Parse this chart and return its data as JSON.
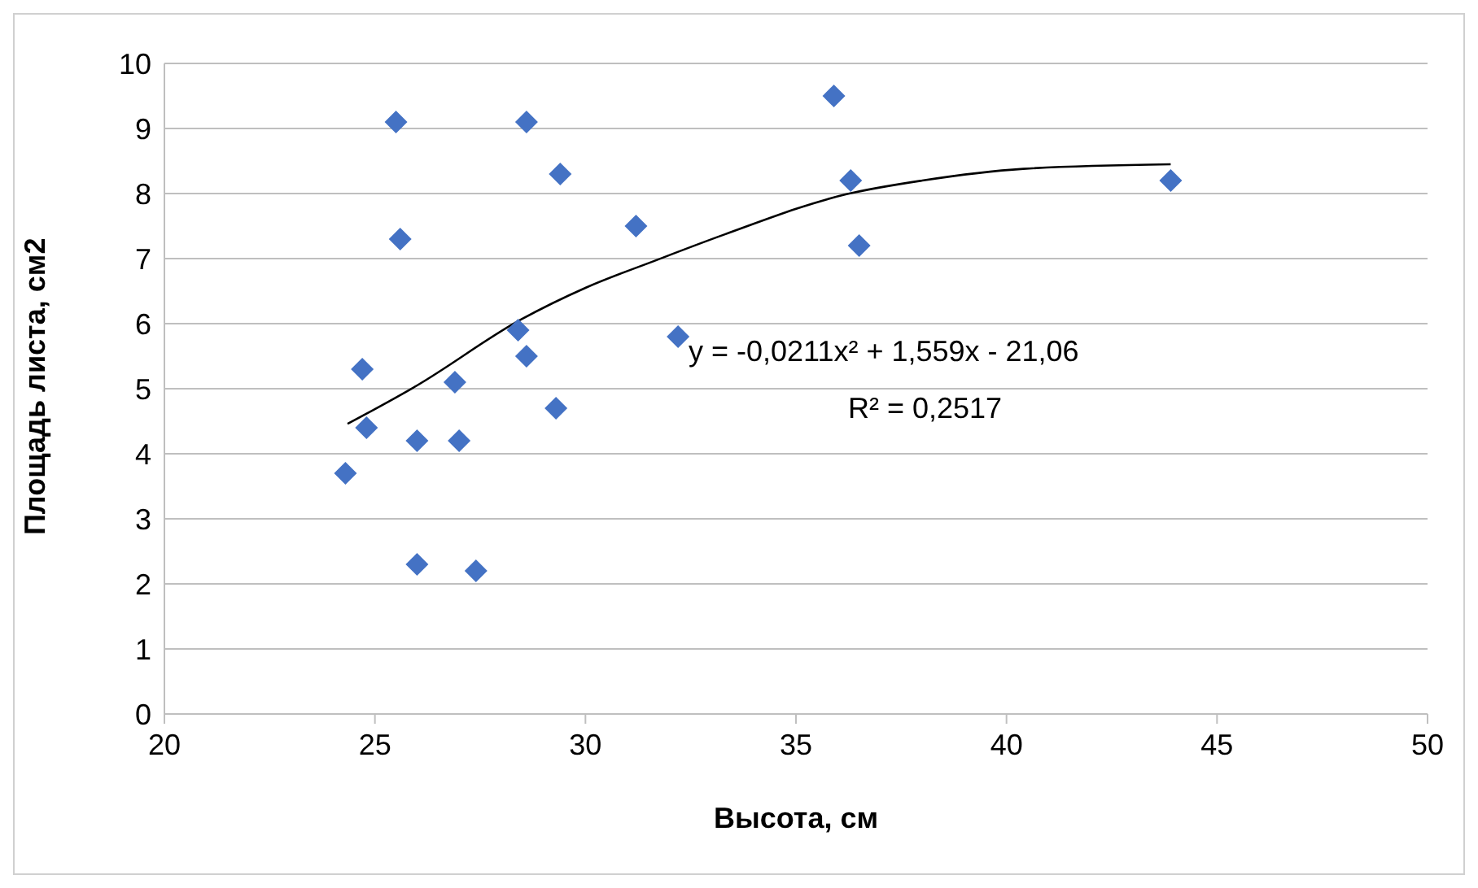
{
  "chart_data": {
    "type": "scatter",
    "xlabel": "Высота, см",
    "ylabel": "Площадь листа, см2",
    "xlim": [
      20,
      50
    ],
    "xticks": [
      20,
      25,
      30,
      35,
      40,
      45,
      50
    ],
    "ylim": [
      0,
      10
    ],
    "yticks": [
      0,
      1,
      2,
      3,
      4,
      5,
      6,
      7,
      8,
      9,
      10
    ],
    "grid": "y",
    "legend": false,
    "marker": "diamond",
    "series": [
      {
        "color": "#4472c4",
        "x": [
          24.3,
          24.7,
          24.8,
          25.5,
          25.6,
          26.0,
          26.0,
          26.9,
          27.0,
          27.4,
          28.4,
          28.6,
          28.6,
          29.3,
          29.4,
          31.2,
          32.2,
          35.9,
          36.3,
          36.5,
          43.9
        ],
        "values": [
          3.7,
          5.3,
          4.4,
          9.1,
          7.3,
          4.2,
          2.3,
          5.1,
          4.2,
          2.2,
          5.9,
          9.1,
          5.5,
          4.7,
          8.3,
          7.5,
          5.8,
          9.5,
          8.2,
          7.2,
          8.2
        ]
      },
      {
        "type": "line",
        "color": "#000000",
        "marker": "none",
        "line_style": "solid",
        "x": [
          24.35,
          26,
          28.46,
          30,
          31.7,
          33.3,
          36.2,
          38,
          40.4,
          43.9
        ],
        "values": [
          4.46,
          5.05,
          6.06,
          6.55,
          6.98,
          7.37,
          7.99,
          8.2,
          8.38,
          8.45
        ]
      }
    ],
    "annotations": [
      "y = -0,0211x² + 1,559x - 21,06",
      "R² = 0,2517"
    ]
  }
}
